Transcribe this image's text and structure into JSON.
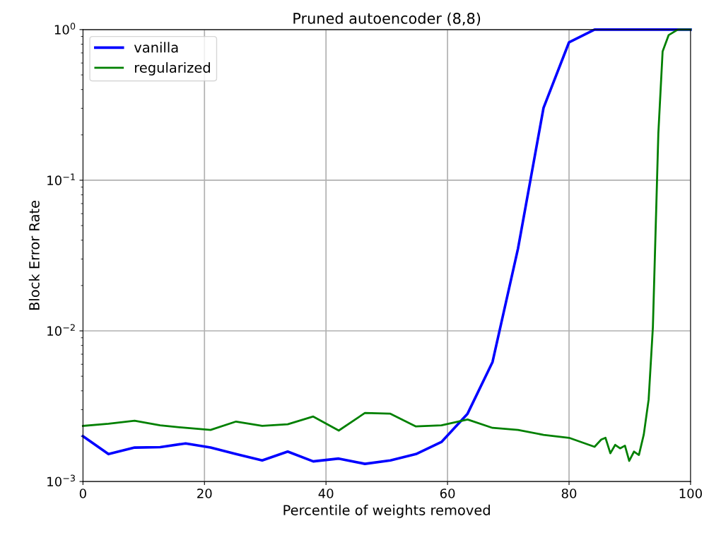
{
  "chart_data": {
    "type": "line",
    "title": "Pruned autoencoder (8,8)",
    "xlabel": "Percentile of weights removed",
    "ylabel": "Block Error Rate",
    "log": "y",
    "grid": true,
    "legend": "top left",
    "line_style": "solid",
    "xlim": [
      0,
      100
    ],
    "xticks": [
      0,
      20,
      40,
      60,
      80,
      100
    ],
    "ylim": [
      0.001,
      1
    ],
    "yticks": [
      {
        "value": 0.001,
        "label": "10$^{−3}$"
      },
      {
        "value": 0.01,
        "label": "10$^{−2}$"
      },
      {
        "value": 0.1,
        "label": "10$^{−1}$"
      },
      {
        "value": 1,
        "label": "10$^{0}$"
      }
    ],
    "series": [
      {
        "name": "vanilla",
        "color": "#0000ff",
        "x": [
          0,
          4.2,
          8.5,
          12.7,
          16.9,
          21.0,
          25.2,
          29.5,
          33.7,
          37.9,
          42.1,
          46.4,
          50.6,
          54.8,
          59.0,
          63.3,
          67.4,
          71.6,
          75.8,
          80.0,
          84.2,
          100
        ],
        "values": [
          0.002,
          0.00152,
          0.00168,
          0.00169,
          0.00179,
          0.00168,
          0.00152,
          0.00138,
          0.00158,
          0.00136,
          0.00142,
          0.00131,
          0.00138,
          0.00152,
          0.00183,
          0.00282,
          0.0062,
          0.0352,
          0.302,
          0.824,
          1.0,
          1.0
        ]
      },
      {
        "name": "regularized",
        "color": "#008000",
        "x": [
          0,
          4.2,
          8.5,
          12.7,
          16.9,
          21.0,
          25.2,
          29.5,
          33.7,
          37.9,
          42.1,
          46.4,
          50.6,
          54.8,
          59.0,
          63.3,
          67.4,
          71.6,
          75.8,
          80.0,
          84.2,
          85.3,
          86.0,
          86.8,
          87.6,
          88.4,
          89.2,
          89.9,
          90.7,
          91.5,
          92.3,
          93.1,
          93.8,
          94.7,
          95.4,
          96.4,
          97.9,
          100
        ],
        "values": [
          0.00234,
          0.00242,
          0.00253,
          0.00236,
          0.00227,
          0.0022,
          0.0025,
          0.00234,
          0.0024,
          0.0027,
          0.00218,
          0.00285,
          0.00282,
          0.00232,
          0.00236,
          0.00258,
          0.00227,
          0.0022,
          0.00204,
          0.00195,
          0.0017,
          0.0019,
          0.00195,
          0.00154,
          0.00175,
          0.00166,
          0.00173,
          0.00137,
          0.00158,
          0.0015,
          0.00205,
          0.0035,
          0.0106,
          0.206,
          0.716,
          0.92,
          1.0,
          1.0
        ]
      }
    ]
  }
}
